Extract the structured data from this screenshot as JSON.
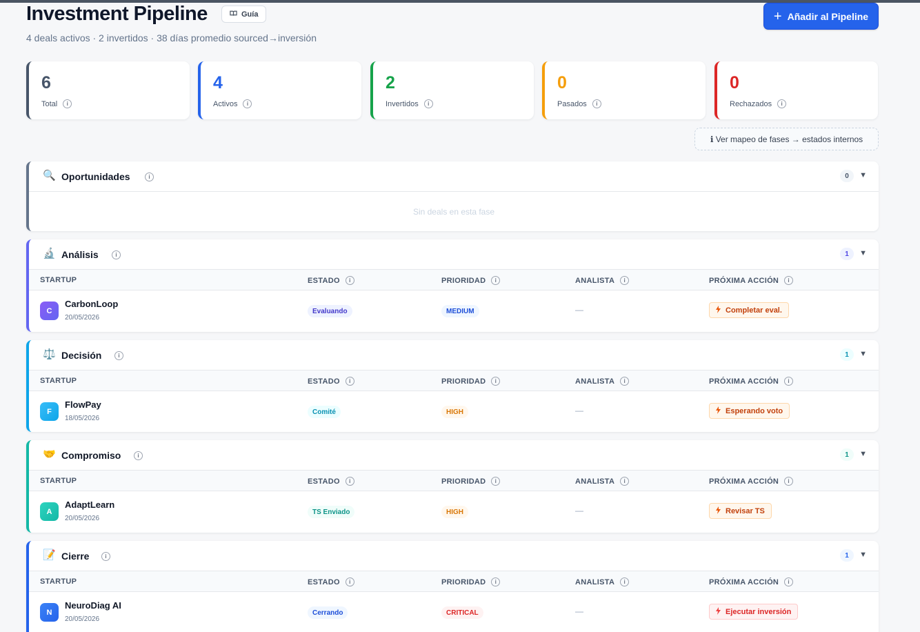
{
  "header": {
    "title": "Investment Pipeline",
    "guide_label": "Guía",
    "subtitle": "4 deals activos · 2 invertidos · 38 días promedio sourced→inversión",
    "add_button_label": "Añadir al Pipeline"
  },
  "stats": [
    {
      "value": "6",
      "label": "Total",
      "color": "#475569"
    },
    {
      "value": "4",
      "label": "Activos",
      "color": "#2563eb"
    },
    {
      "value": "2",
      "label": "Invertidos",
      "color": "#16a34a"
    },
    {
      "value": "0",
      "label": "Pasados",
      "color": "#f59e0b"
    },
    {
      "value": "0",
      "label": "Rechazados",
      "color": "#dc2626"
    }
  ],
  "mapping_link": "ℹ Ver mapeo de fases → estados internos",
  "columns": {
    "startup": "STARTUP",
    "estado": "ESTADO",
    "prioridad": "PRIORIDAD",
    "analista": "ANALISTA",
    "accion": "PRÓXIMA ACCIÓN"
  },
  "phases": [
    {
      "name": "Oportunidades",
      "icon": "🔍",
      "count": "0",
      "empty_text": "Sin deals en esta fase",
      "accent": "#64748b"
    },
    {
      "name": "Análisis",
      "icon": "🔬",
      "count": "1",
      "accent": "#6366f1",
      "deal": {
        "initial": "C",
        "name": "CarbonLoop",
        "date": "20/05/2026",
        "status": "Evaluando",
        "priority": "MEDIUM",
        "analyst": "—",
        "action": "Completar eval."
      }
    },
    {
      "name": "Decisión",
      "icon": "⚖️",
      "count": "1",
      "accent": "#0ea5e9",
      "deal": {
        "initial": "F",
        "name": "FlowPay",
        "date": "18/05/2026",
        "status": "Comité",
        "priority": "HIGH",
        "analyst": "—",
        "action": "Esperando voto"
      }
    },
    {
      "name": "Compromiso",
      "icon": "🤝",
      "count": "1",
      "accent": "#14b8a6",
      "deal": {
        "initial": "A",
        "name": "AdaptLearn",
        "date": "20/05/2026",
        "status": "TS Enviado",
        "priority": "HIGH",
        "analyst": "—",
        "action": "Revisar TS"
      }
    },
    {
      "name": "Cierre",
      "icon": "📝",
      "count": "1",
      "accent": "#2563eb",
      "deal": {
        "initial": "N",
        "name": "NeuroDiag AI",
        "date": "20/05/2026",
        "status": "Cerrando",
        "priority": "CRITICAL",
        "analyst": "—",
        "action": "Ejecutar inversión"
      }
    }
  ]
}
